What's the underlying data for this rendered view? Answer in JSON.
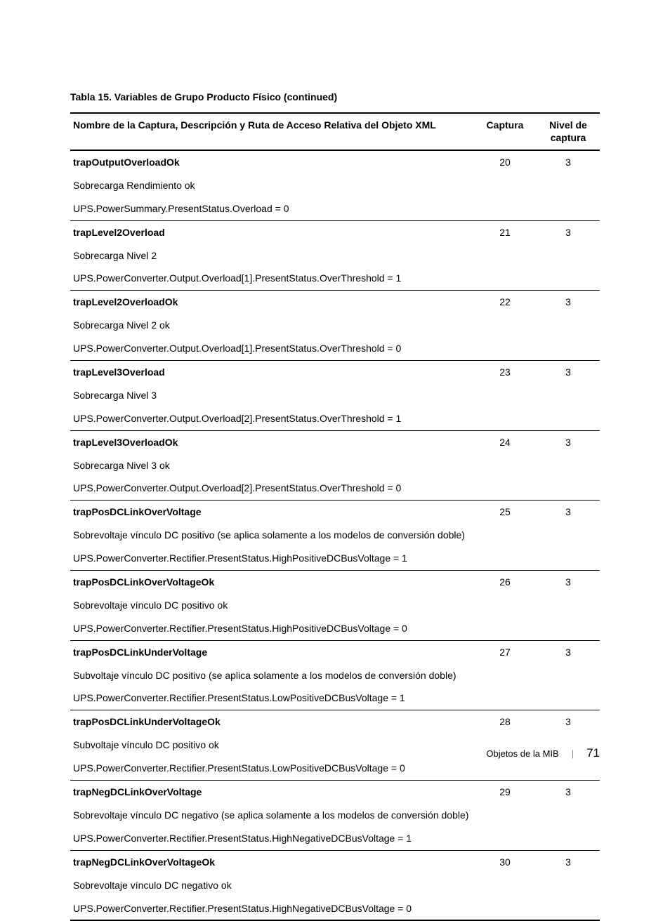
{
  "title": "Tabla 15. Variables de Grupo Producto Físico (continued)",
  "columns": {
    "c0": "Nombre de la Captura, Descripción y Ruta de Acceso Relativa del Objeto XML",
    "c1": "Captura",
    "c2": "Nivel de captura"
  },
  "rows": [
    {
      "name": "trapOutputOverloadOk",
      "captura": "20",
      "nivel": "3",
      "desc": "Sobrecarga Rendimiento ok",
      "path": "UPS.PowerSummary.PresentStatus.Overload = 0"
    },
    {
      "name": "trapLevel2Overload",
      "captura": "21",
      "nivel": "3",
      "desc": "Sobrecarga Nivel 2",
      "path": "UPS.PowerConverter.Output.Overload[1].PresentStatus.OverThreshold = 1"
    },
    {
      "name": "trapLevel2OverloadOk",
      "captura": "22",
      "nivel": "3",
      "desc": "Sobrecarga Nivel 2 ok",
      "path": "UPS.PowerConverter.Output.Overload[1].PresentStatus.OverThreshold = 0"
    },
    {
      "name": "trapLevel3Overload",
      "captura": "23",
      "nivel": "3",
      "desc": "Sobrecarga Nivel 3",
      "path": "UPS.PowerConverter.Output.Overload[2].PresentStatus.OverThreshold = 1"
    },
    {
      "name": "trapLevel3OverloadOk",
      "captura": "24",
      "nivel": "3",
      "desc": "Sobrecarga Nivel 3 ok",
      "path": "UPS.PowerConverter.Output.Overload[2].PresentStatus.OverThreshold = 0"
    },
    {
      "name": "trapPosDCLinkOverVoltage",
      "captura": "25",
      "nivel": "3",
      "desc": "Sobrevoltaje vínculo DC positivo (se aplica solamente a los modelos de conversión doble)",
      "path": "UPS.PowerConverter.Rectifier.PresentStatus.HighPositiveDCBusVoltage = 1"
    },
    {
      "name": "trapPosDCLinkOverVoltageOk",
      "captura": "26",
      "nivel": "3",
      "desc": "Sobrevoltaje vínculo DC positivo ok",
      "path": "UPS.PowerConverter.Rectifier.PresentStatus.HighPositiveDCBusVoltage = 0"
    },
    {
      "name": "trapPosDCLinkUnderVoltage",
      "captura": "27",
      "nivel": "3",
      "desc": "Subvoltaje vínculo DC positivo (se aplica solamente a los modelos de conversión doble)",
      "path": "UPS.PowerConverter.Rectifier.PresentStatus.LowPositiveDCBusVoltage = 1"
    },
    {
      "name": "trapPosDCLinkUnderVoltageOk",
      "captura": "28",
      "nivel": "3",
      "desc": "Subvoltaje vínculo DC positivo ok",
      "path": "UPS.PowerConverter.Rectifier.PresentStatus.LowPositiveDCBusVoltage = 0"
    },
    {
      "name": "trapNegDCLinkOverVoltage",
      "captura": "29",
      "nivel": "3",
      "desc": "Sobrevoltaje vínculo DC negativo (se aplica solamente a los modelos de conversión doble)",
      "path": "UPS.PowerConverter.Rectifier.PresentStatus.HighNegativeDCBusVoltage = 1"
    },
    {
      "name": "trapNegDCLinkOverVoltageOk",
      "captura": "30",
      "nivel": "3",
      "desc": "Sobrevoltaje vínculo DC negativo ok",
      "path": "UPS.PowerConverter.Rectifier.PresentStatus.HighNegativeDCBusVoltage = 0"
    }
  ],
  "footer": {
    "section": "Objetos de la MIB",
    "page": "71"
  }
}
